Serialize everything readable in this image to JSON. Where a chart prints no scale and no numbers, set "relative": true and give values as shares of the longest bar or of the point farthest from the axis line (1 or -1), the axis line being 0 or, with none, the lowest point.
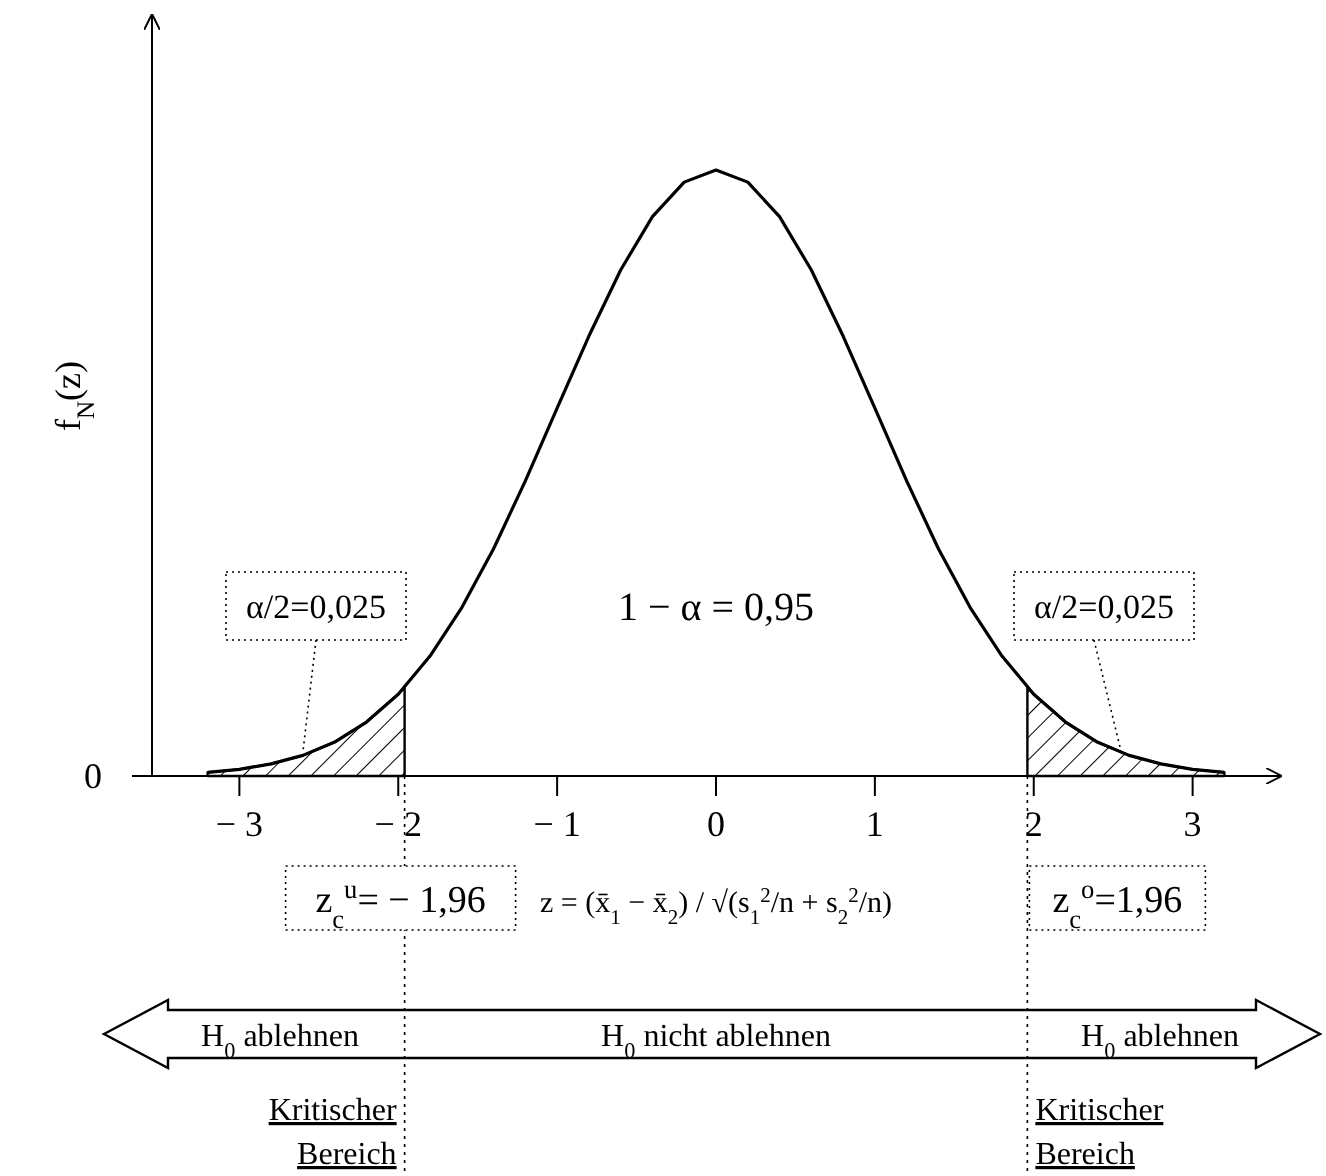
{
  "chart_data": {
    "type": "line",
    "relative": true,
    "ylabel": "f$_{N}$(z)",
    "xlim": [
      -3.55,
      3.55
    ],
    "xticks": [
      {
        "value": -3,
        "label": "− 3"
      },
      {
        "value": -2,
        "label": "− 2"
      },
      {
        "value": -1,
        "label": "− 1"
      },
      0,
      1,
      2,
      3
    ],
    "line_style": "solid",
    "series": [
      {
        "color": "#000000",
        "x": [
          -3.2,
          -3.0,
          -2.8,
          -2.6,
          -2.4,
          -2.2,
          -2.0,
          -1.8,
          -1.6,
          -1.4,
          -1.2,
          -1.0,
          -0.8,
          -0.6,
          -0.4,
          -0.2,
          0,
          0.2,
          0.4,
          0.6,
          0.8,
          1.0,
          1.2,
          1.4,
          1.6,
          1.8,
          2.0,
          2.2,
          2.4,
          2.6,
          2.8,
          3.0,
          3.2
        ],
        "values": [
          0.006,
          0.011,
          0.02,
          0.034,
          0.056,
          0.089,
          0.135,
          0.198,
          0.278,
          0.375,
          0.487,
          0.607,
          0.726,
          0.835,
          0.923,
          0.98,
          1,
          0.98,
          0.923,
          0.835,
          0.726,
          0.607,
          0.487,
          0.375,
          0.278,
          0.198,
          0.135,
          0.089,
          0.056,
          0.034,
          0.02,
          0.011,
          0.006
        ]
      },
      {
        "type": "area",
        "color": "#000000",
        "x": [
          -3.2,
          -3.0,
          -2.8,
          -2.6,
          -2.4,
          -2.2,
          -2.0,
          -1.96
        ],
        "values": [
          0.006,
          0.011,
          0.02,
          0.034,
          0.056,
          0.089,
          0.135,
          0.146
        ]
      },
      {
        "type": "area",
        "color": "#000000",
        "x": [
          1.96,
          2.0,
          2.2,
          2.4,
          2.6,
          2.8,
          3.0,
          3.2
        ],
        "values": [
          0.146,
          0.135,
          0.089,
          0.056,
          0.034,
          0.02,
          0.011,
          0.006
        ]
      }
    ],
    "ref_lines": [
      {
        "axis": "x",
        "value": -1.96,
        "label": "z$_{c}$$^{u}$= − 1,96",
        "line_style": "dotted"
      },
      {
        "axis": "x",
        "value": 1.96,
        "label": "z$_{c}$$^{o}$=1,96",
        "line_style": "dotted"
      }
    ],
    "annotations": [
      "0",
      {
        "text": "α/2=0,025",
        "x": -2.6,
        "y": 0.04
      },
      {
        "text": "α/2=0,025",
        "x": 2.55,
        "y": 0.04
      },
      "1 − α = 0,95",
      "z = (x̄$_{1}$ − x̄$_{2}$) / √(s$_{1}$$^{2}$/n + s$_{2}$$^{2}$/n)",
      "H$_{0}$ ablehnen",
      "H$_{0}$ nicht ablehnen",
      "H$_{0}$ ablehnen",
      "Kritischer Bereich",
      "Kritischer Bereich"
    ]
  }
}
